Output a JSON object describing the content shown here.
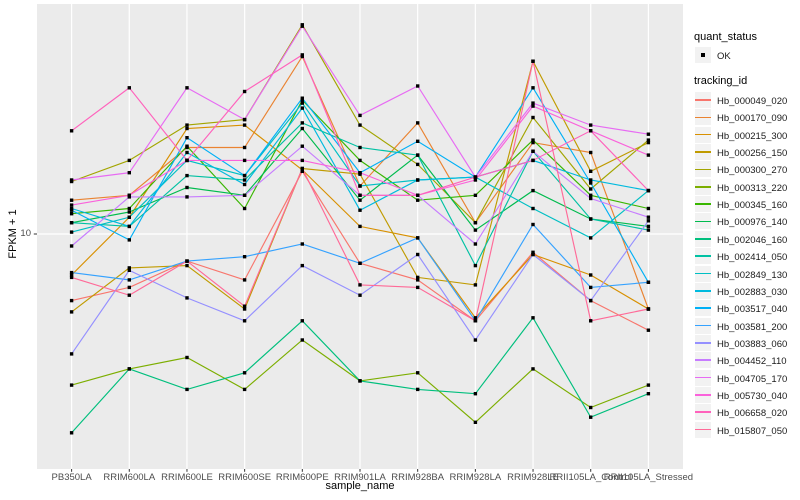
{
  "y_axis": {
    "title": "FPKM + 1",
    "tick_label": "10",
    "tick_value": 10
  },
  "x_axis": {
    "title": "sample_name"
  },
  "legend": {
    "position": "right",
    "quant_status": {
      "title": "quant_status",
      "items": [
        {
          "label": "OK",
          "symbol": "black-point"
        }
      ]
    },
    "tracking_id": {
      "title": "tracking_id"
    }
  },
  "panel": {
    "background": "#EBEBEB",
    "gridline_color": "#FFFFFF",
    "point_color": "#000000",
    "tick_color": "#333333",
    "tick_label_color": "#4d4d4d"
  },
  "chart_data": {
    "type": "line",
    "title": "",
    "xlabel": "sample_name",
    "ylabel": "FPKM + 1",
    "y_scale": "log10",
    "ylim": [
      3.2,
      31.6
    ],
    "y_major_gridlines": [
      10
    ],
    "grid": true,
    "legend_position": "right",
    "point_shape": "filled-black-square",
    "categories": [
      "PB350LA",
      "RRIM600LA",
      "RRIM600LE",
      "RRIM600SE",
      "RRIM600PE",
      "RRIM901LA",
      "RRIM928BA",
      "RRIM928LA",
      "RRIM928LE",
      "RRII105LA_Control",
      "RRII105LA_Stressed"
    ],
    "series": [
      {
        "name": "Hb_000049_020",
        "color": "#F8766D",
        "values": [
          7.1,
          7.6,
          8.7,
          7.9,
          13.8,
          8.6,
          7.9,
          6.4,
          9.1,
          7.1,
          6.1
        ]
      },
      {
        "name": "Hb_000170_090",
        "color": "#EA8331",
        "values": [
          11.9,
          12.2,
          15.6,
          15.6,
          24.9,
          12.8,
          17.7,
          10.6,
          16.0,
          15.2,
          6.8
        ]
      },
      {
        "name": "Hb_000215_300",
        "color": "#D89000",
        "values": [
          8.1,
          10.9,
          17.2,
          17.5,
          13.9,
          10.4,
          9.8,
          6.5,
          9.0,
          8.1,
          6.8
        ]
      },
      {
        "name": "Hb_000256_150",
        "color": "#C09B00",
        "values": [
          6.7,
          8.4,
          8.5,
          6.8,
          14.0,
          13.6,
          8.0,
          7.7,
          24.3,
          13.8,
          16.0
        ]
      },
      {
        "name": "Hb_000300_270",
        "color": "#A3A500",
        "values": [
          13.1,
          14.6,
          17.5,
          18.0,
          29.3,
          17.5,
          14.3,
          10.6,
          18.2,
          12.6,
          16.2
        ]
      },
      {
        "name": "Hb_000313_220",
        "color": "#7CAE00",
        "values": [
          4.6,
          5.0,
          5.3,
          4.5,
          5.8,
          4.7,
          4.9,
          3.8,
          5.0,
          4.1,
          4.6
        ]
      },
      {
        "name": "Hb_000345_160",
        "color": "#39B600",
        "values": [
          11.1,
          11.4,
          15.7,
          11.4,
          19.9,
          14.6,
          11.9,
          12.2,
          16.2,
          12.2,
          11.4
        ]
      },
      {
        "name": "Hb_000976_140",
        "color": "#00BB4E",
        "values": [
          10.6,
          11.2,
          12.7,
          12.2,
          17.2,
          11.9,
          15.0,
          10.2,
          12.5,
          10.8,
          10.4
        ]
      },
      {
        "name": "Hb_002046_160",
        "color": "#00BF7D",
        "values": [
          3.6,
          5.0,
          4.5,
          4.9,
          6.4,
          4.7,
          4.5,
          4.4,
          6.5,
          3.9,
          4.4
        ]
      },
      {
        "name": "Hb_002414_050",
        "color": "#00C1A3",
        "values": [
          10.6,
          10.4,
          13.5,
          13.2,
          17.7,
          15.6,
          15.0,
          8.5,
          15.3,
          10.8,
          10.2
        ]
      },
      {
        "name": "Hb_002849_130",
        "color": "#00BFC4",
        "values": [
          10.1,
          10.9,
          14.6,
          13.5,
          19.6,
          12.8,
          13.2,
          13.4,
          11.4,
          9.8,
          12.5
        ]
      },
      {
        "name": "Hb_002883_030",
        "color": "#00BADE",
        "values": [
          11.4,
          10.4,
          15.2,
          12.9,
          19.1,
          11.3,
          13.2,
          13.4,
          14.6,
          13.2,
          12.5
        ]
      },
      {
        "name": "Hb_003517_040",
        "color": "#00B0F6",
        "values": [
          11.3,
          9.7,
          16.4,
          13.5,
          20.1,
          13.7,
          16.1,
          13.4,
          21.2,
          13.0,
          7.8
        ]
      },
      {
        "name": "Hb_003581_200",
        "color": "#35A2FF",
        "values": [
          8.2,
          7.9,
          8.7,
          8.9,
          9.5,
          8.6,
          9.8,
          6.4,
          10.5,
          7.6,
          7.8
        ]
      },
      {
        "name": "Hb_003883_060",
        "color": "#9590FF",
        "values": [
          5.4,
          8.3,
          7.2,
          6.4,
          8.5,
          7.3,
          9.0,
          5.8,
          9.0,
          7.1,
          10.7
        ]
      },
      {
        "name": "Hb_004452_110",
        "color": "#C77CFF",
        "values": [
          9.4,
          12.1,
          12.1,
          12.2,
          15.7,
          12.2,
          12.2,
          9.5,
          15.3,
          12.0,
          10.9
        ]
      },
      {
        "name": "Hb_004705_170",
        "color": "#E76BF3",
        "values": [
          13.2,
          13.7,
          21.2,
          18.0,
          29.1,
          18.4,
          21.4,
          13.4,
          19.6,
          17.5,
          16.7
        ]
      },
      {
        "name": "Hb_005730_040",
        "color": "#FA62DB",
        "values": [
          11.6,
          12.2,
          14.6,
          14.6,
          14.6,
          13.7,
          12.2,
          13.2,
          19.3,
          17.0,
          15.0
        ]
      },
      {
        "name": "Hb_006658_020",
        "color": "#FF62BC",
        "values": [
          17.0,
          21.2,
          14.6,
          20.8,
          25.1,
          12.2,
          12.2,
          13.4,
          14.6,
          17.0,
          12.5
        ]
      },
      {
        "name": "Hb_015807_050",
        "color": "#FF6A98",
        "values": [
          8.0,
          7.3,
          8.7,
          6.9,
          14.0,
          7.7,
          7.6,
          6.4,
          24.3,
          6.4,
          6.8
        ]
      }
    ]
  }
}
